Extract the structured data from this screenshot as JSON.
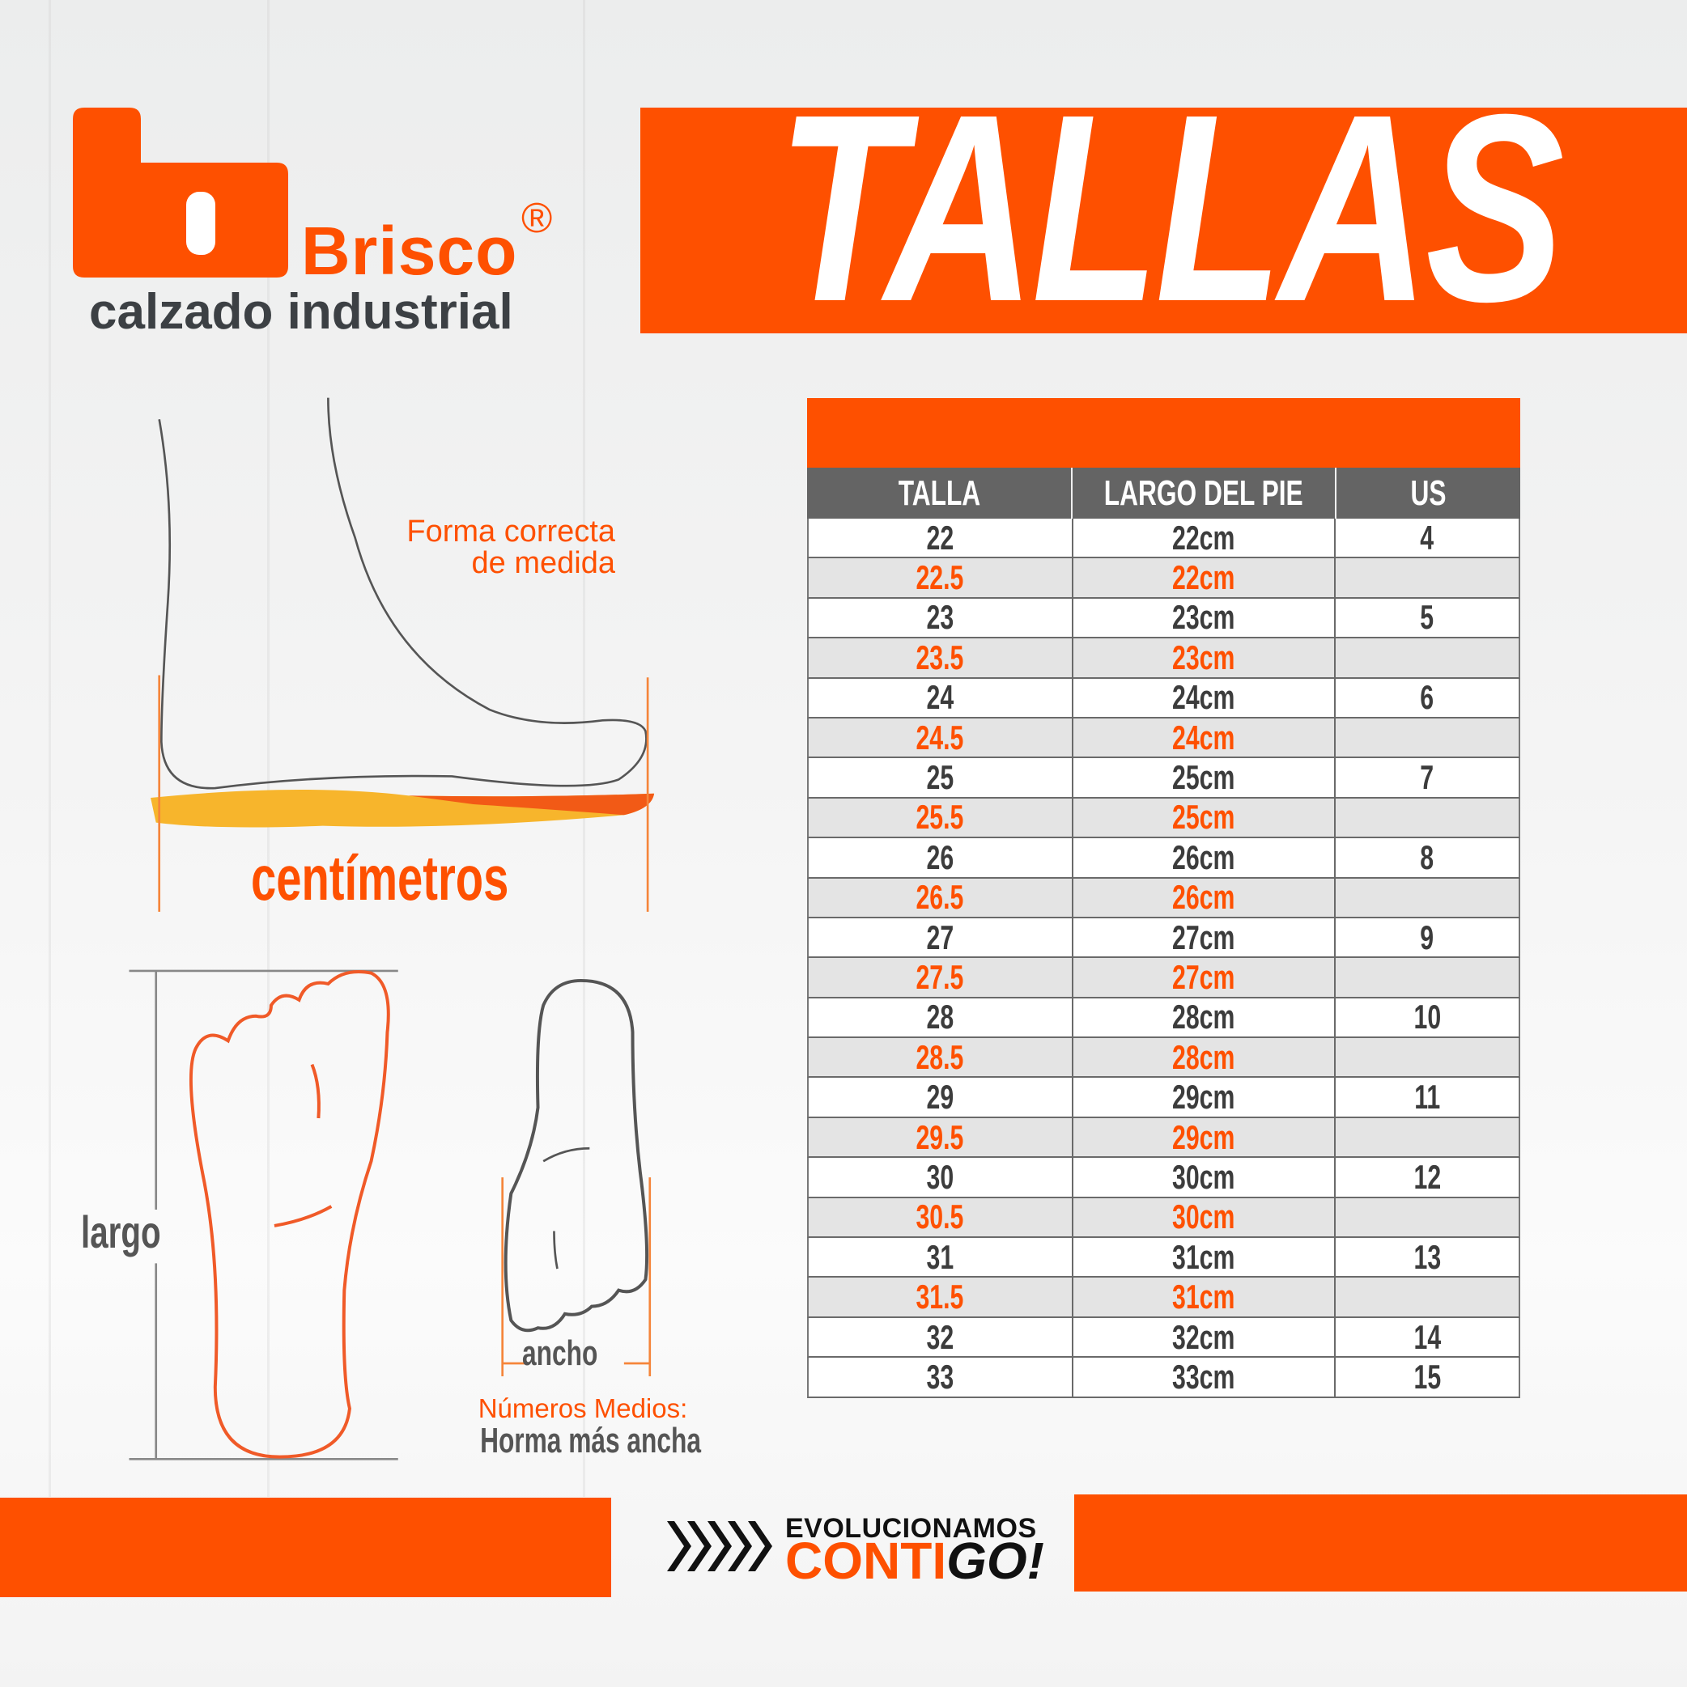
{
  "brand": {
    "name": "Brisco",
    "registered": "®",
    "tagline": "calzado industrial",
    "color": "#fe5000"
  },
  "title": "TALLAS",
  "illustration": {
    "measure_note": [
      "Forma correcta",
      "de medida"
    ],
    "unit_label": "centímetros",
    "length_label": "largo",
    "width_label": "ancho",
    "half_sizes_title": "Números Medios:",
    "half_sizes_note": "Horma más ancha"
  },
  "table": {
    "headers": [
      "TALLA",
      "LARGO DEL PIE",
      "US"
    ],
    "rows": [
      {
        "talla": "22",
        "largo": "22cm",
        "us": "4",
        "half": false
      },
      {
        "talla": "22.5",
        "largo": "22cm",
        "us": "",
        "half": true
      },
      {
        "talla": "23",
        "largo": "23cm",
        "us": "5",
        "half": false
      },
      {
        "talla": "23.5",
        "largo": "23cm",
        "us": "",
        "half": true
      },
      {
        "talla": "24",
        "largo": "24cm",
        "us": "6",
        "half": false
      },
      {
        "talla": "24.5",
        "largo": "24cm",
        "us": "",
        "half": true
      },
      {
        "talla": "25",
        "largo": "25cm",
        "us": "7",
        "half": false
      },
      {
        "talla": "25.5",
        "largo": "25cm",
        "us": "",
        "half": true
      },
      {
        "talla": "26",
        "largo": "26cm",
        "us": "8",
        "half": false
      },
      {
        "talla": "26.5",
        "largo": "26cm",
        "us": "",
        "half": true
      },
      {
        "talla": "27",
        "largo": "27cm",
        "us": "9",
        "half": false
      },
      {
        "talla": "27.5",
        "largo": "27cm",
        "us": "",
        "half": true
      },
      {
        "talla": "28",
        "largo": "28cm",
        "us": "10",
        "half": false
      },
      {
        "talla": "28.5",
        "largo": "28cm",
        "us": "",
        "half": true
      },
      {
        "talla": "29",
        "largo": "29cm",
        "us": "11",
        "half": false
      },
      {
        "talla": "29.5",
        "largo": "29cm",
        "us": "",
        "half": true
      },
      {
        "talla": "30",
        "largo": "30cm",
        "us": "12",
        "half": false
      },
      {
        "talla": "30.5",
        "largo": "30cm",
        "us": "",
        "half": true
      },
      {
        "talla": "31",
        "largo": "31cm",
        "us": "13",
        "half": false
      },
      {
        "talla": "31.5",
        "largo": "31cm",
        "us": "",
        "half": true
      },
      {
        "talla": "32",
        "largo": "32cm",
        "us": "14",
        "half": false
      },
      {
        "talla": "33",
        "largo": "33cm",
        "us": "15",
        "half": false
      }
    ]
  },
  "slogan": {
    "line1": "EVOLUCIONAMOS",
    "line2_a": "CONTI",
    "line2_b": "GO!",
    "icon": "chevrons-right-icon"
  }
}
